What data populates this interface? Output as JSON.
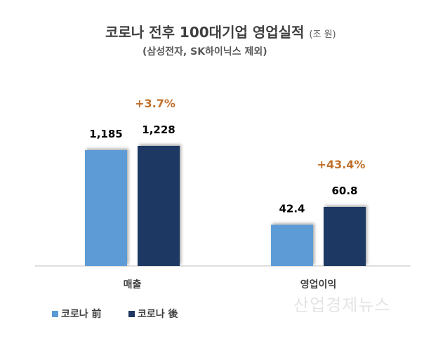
{
  "chart_data": {
    "type": "bar",
    "title": "코로나 전후 100대기업 영업실적",
    "unit": "(조 원)",
    "subtitle": "(삼성전자, SK하이닉스 제외)",
    "categories": [
      "매출",
      "영업이익"
    ],
    "series": [
      {
        "name": "코로나 前",
        "values": [
          1185,
          42.4
        ],
        "labels": [
          "1,185",
          "42.4"
        ],
        "color": "#5b9bd5"
      },
      {
        "name": "코로나 後",
        "values": [
          1228,
          60.8
        ],
        "labels": [
          "1,228",
          "60.8"
        ],
        "color": "#1f3864"
      }
    ],
    "annotations": [
      "+3.7%",
      "+43.4%"
    ],
    "annotation_color": "#c0702c",
    "legend_position": "bottom-left",
    "grid": false
  },
  "watermark": "산업경제뉴스"
}
